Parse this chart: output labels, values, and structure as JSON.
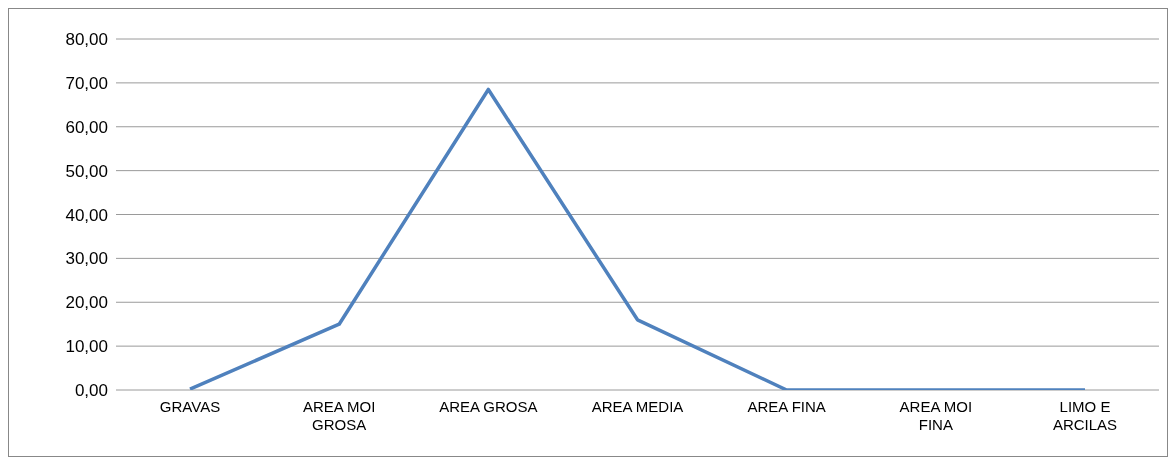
{
  "chart_data": {
    "type": "line",
    "categories": [
      "GRAVAS",
      "AREA MOI GROSA",
      "AREA GROSA",
      "AREA MEDIA",
      "AREA FINA",
      "AREA MOI FINA",
      "LIMO E ARCILAS"
    ],
    "series": [
      {
        "color": "#4f81bd",
        "values": [
          0.2,
          15,
          68.5,
          16,
          0,
          0,
          0
        ]
      }
    ],
    "ylim": [
      0,
      80
    ],
    "yticks": [
      {
        "value": 0,
        "label": "0,00"
      },
      {
        "value": 10,
        "label": "10,00"
      },
      {
        "value": 20,
        "label": "20,00"
      },
      {
        "value": 30,
        "label": "30,00"
      },
      {
        "value": 40,
        "label": "40,00"
      },
      {
        "value": 50,
        "label": "50,00"
      },
      {
        "value": 60,
        "label": "60,00"
      },
      {
        "value": 70,
        "label": "70,00"
      },
      {
        "value": 80,
        "label": "80,00"
      }
    ],
    "grid": "y",
    "marker": "none",
    "line_style": "solid",
    "legend": false
  }
}
